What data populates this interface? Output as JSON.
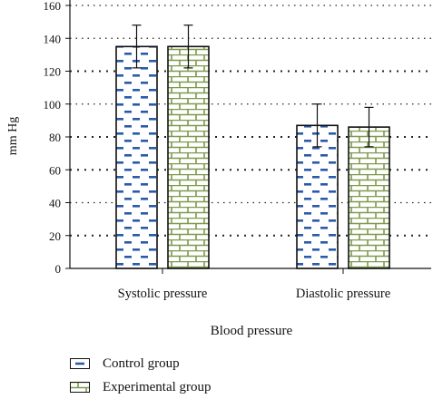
{
  "chart_data": {
    "type": "bar",
    "categories": [
      "Systolic pressure",
      "Diastolic pressure"
    ],
    "series": [
      {
        "name": "Control group",
        "values": [
          135,
          87
        ],
        "error": [
          13,
          13
        ],
        "color": "#2a5aa8",
        "pattern": "dashes"
      },
      {
        "name": "Experimental group",
        "values": [
          135,
          86
        ],
        "error": [
          13,
          12
        ],
        "color": "#7d9a4c",
        "pattern": "bricks"
      }
    ],
    "xlabel": "Blood pressure",
    "ylabel": "mm Hg",
    "ylim": [
      0,
      160
    ],
    "yticks": [
      0,
      20,
      40,
      60,
      80,
      100,
      120,
      140,
      160
    ],
    "grid": true,
    "legend_position": "bottom-left"
  }
}
